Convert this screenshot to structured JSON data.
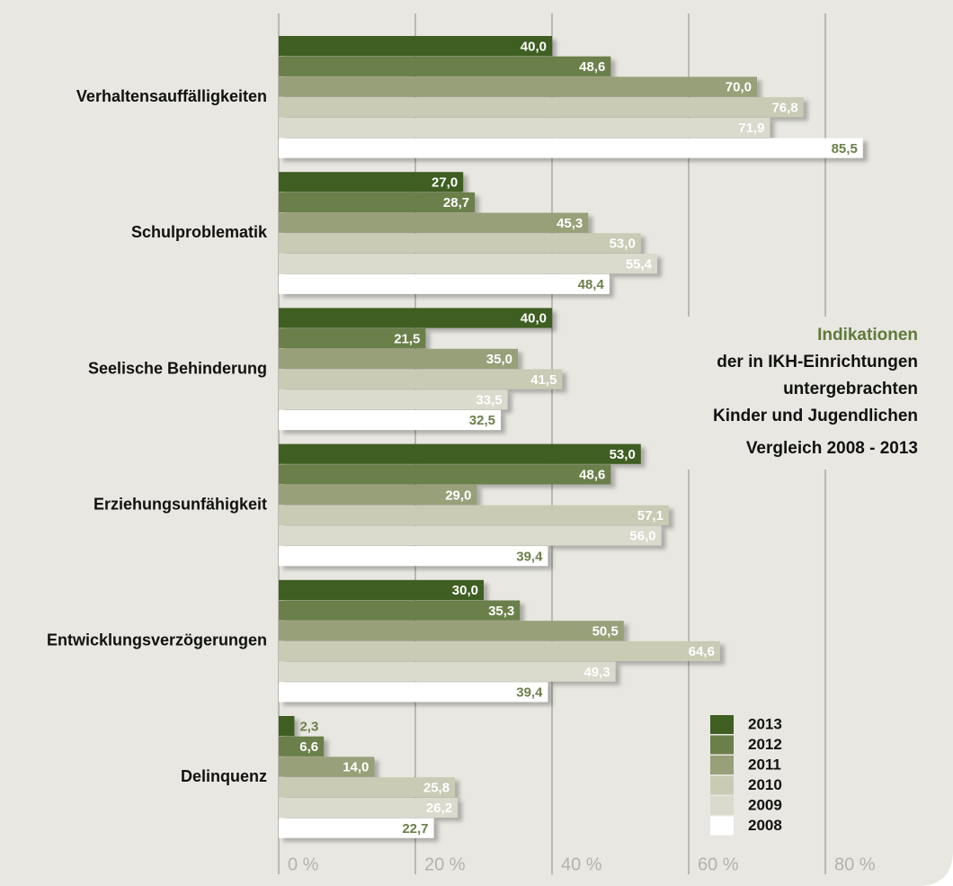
{
  "chart_data": {
    "type": "hbar",
    "title": [
      "Indikationen",
      "der in IKH-Einrichtungen",
      "untergebrachten",
      "Kinder und Jugendlichen",
      "Vergleich 2008 - 2013"
    ],
    "title_color": "#5f7a3a",
    "categories": [
      "Verhaltensauffälligkeiten",
      "Schulproblematik",
      "Seelische Behinderung",
      "Erziehungsunfähigkeit",
      "Entwicklungsverzögerungen",
      "Delinquenz"
    ],
    "series": [
      {
        "name": "2013",
        "color": "#3f5e22",
        "label_color": "#ffffff",
        "values": [
          40,
          27,
          40,
          53,
          30,
          2.3
        ],
        "value_labels": [
          "40,0",
          "27,0",
          "40,0",
          "53,0",
          "30,0",
          "2,3"
        ]
      },
      {
        "name": "2012",
        "color": "#6b7f4a",
        "label_color": "#ffffff",
        "values": [
          48.6,
          28.7,
          21.5,
          48.6,
          35.3,
          6.6
        ],
        "value_labels": [
          "48,6",
          "28,7",
          "21,5",
          "48,6",
          "35,3",
          "6,6"
        ]
      },
      {
        "name": "2011",
        "color": "#97a078",
        "label_color": "#ffffff",
        "values": [
          70,
          45.3,
          35,
          29,
          50.5,
          14
        ],
        "value_labels": [
          "70,0",
          "45,3",
          "35,0",
          "29,0",
          "50,5",
          "14,0"
        ]
      },
      {
        "name": "2010",
        "color": "#c9cbb5",
        "label_color": "#ffffff",
        "values": [
          76.8,
          53,
          41.5,
          57.1,
          64.6,
          25.8
        ],
        "value_labels": [
          "76,8",
          "53,0",
          "41,5",
          "57,1",
          "64,6",
          "25,8"
        ]
      },
      {
        "name": "2009",
        "color": "#dadacd",
        "label_color": "#ffffff",
        "values": [
          71.9,
          55.4,
          33.5,
          56,
          49.3,
          26.2
        ],
        "value_labels": [
          "71,9",
          "55,4",
          "33,5",
          "56,0",
          "49,3",
          "26,2"
        ]
      },
      {
        "name": "2008",
        "color": "#ffffff",
        "label_color": "#6b7f4a",
        "values": [
          85.5,
          48.4,
          32.5,
          39.4,
          39.4,
          22.7
        ],
        "value_labels": [
          "85,5",
          "48,4",
          "32,5",
          "39,4",
          "39,4",
          "22,7"
        ]
      }
    ],
    "xlim": [
      0,
      90
    ],
    "xticks": [
      {
        "value": 0,
        "label": "0 %"
      },
      {
        "value": 20,
        "label": "20 %"
      },
      {
        "value": 40,
        "label": "40 %"
      },
      {
        "value": 60,
        "label": "60 %"
      },
      {
        "value": 80,
        "label": "80 %"
      }
    ],
    "grid": true
  }
}
